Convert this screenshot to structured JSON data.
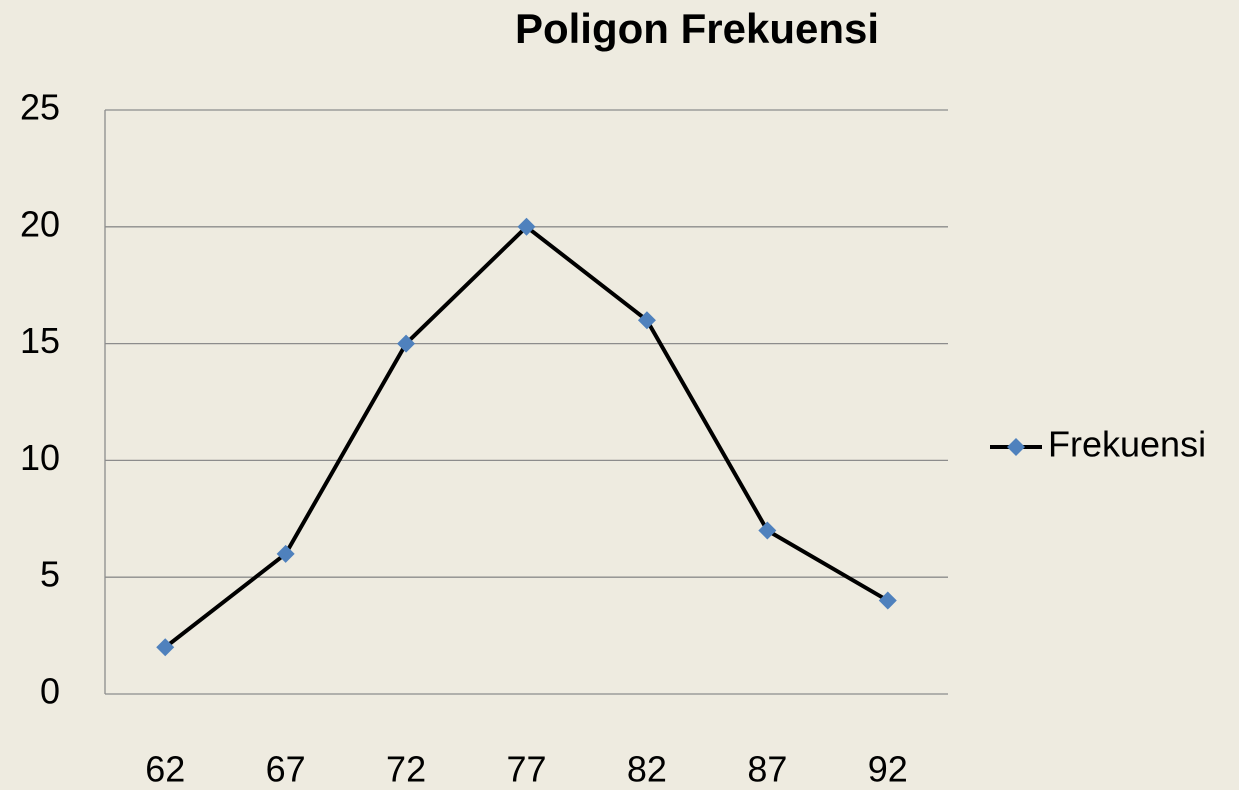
{
  "chart_data": {
    "type": "line",
    "title": "Poligon Frekuensi",
    "categories": [
      "62",
      "67",
      "72",
      "77",
      "82",
      "87",
      "92"
    ],
    "series": [
      {
        "name": "Frekuensi",
        "color": "#000000",
        "marker_color": "#4f81bd",
        "values": [
          2,
          6,
          15,
          20,
          16,
          7,
          4
        ]
      }
    ],
    "ylim": [
      0,
      25
    ],
    "yticks": [
      0,
      5,
      10,
      15,
      20,
      25
    ],
    "grid": true,
    "legend": "right"
  }
}
